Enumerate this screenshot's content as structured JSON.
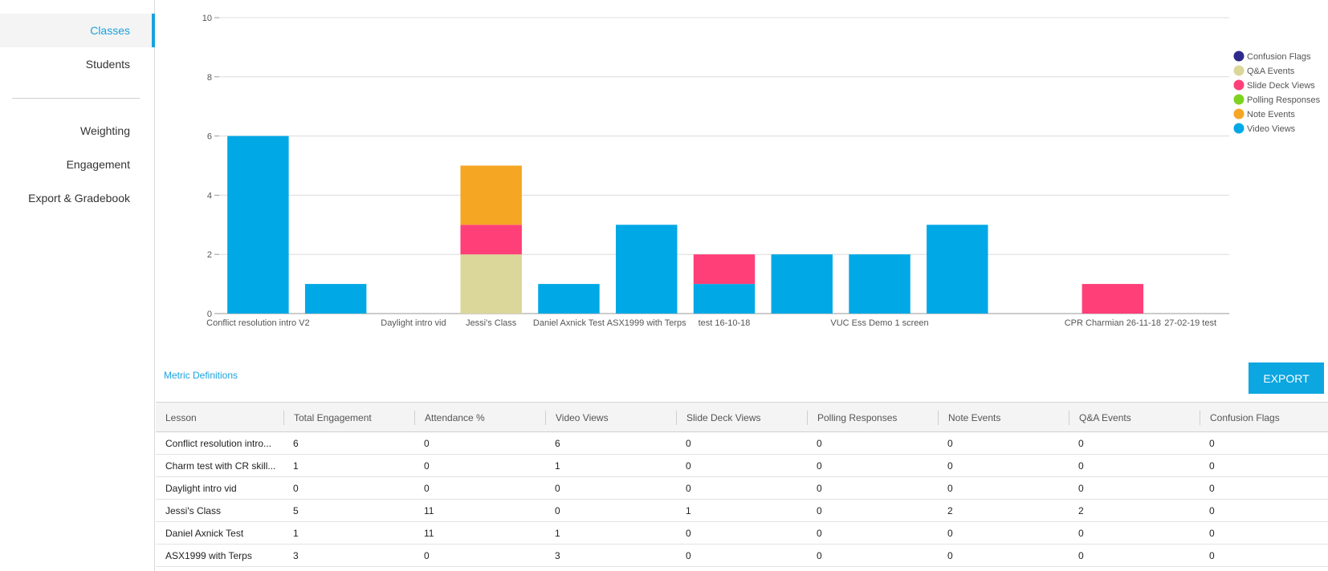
{
  "sidebar": {
    "items": [
      {
        "label": "Classes",
        "active": true
      },
      {
        "label": "Students",
        "active": false
      },
      {
        "label": "Weighting",
        "active": false
      },
      {
        "label": "Engagement",
        "active": false
      },
      {
        "label": "Export & Gradebook",
        "active": false
      }
    ]
  },
  "colors": {
    "accent": "#1aa3dd",
    "confusion_flags": "#2e2a8c",
    "qa_events": "#dbd69a",
    "slide_deck_views": "#ff3f78",
    "polling_responses": "#7ed321",
    "note_events": "#f5a623",
    "video_views": "#00a8e6"
  },
  "chart_data": {
    "type": "bar",
    "stacked": true,
    "categories": [
      "Conflict resolution intro V2",
      "Charm test with CR skill",
      "Daylight intro vid",
      "Jessi's Class",
      "Daniel Axnick Test",
      "ASX1999 with Terps",
      "test 16-10-18",
      "",
      "VUC Ess Demo 1 screen",
      "",
      "",
      "CPR Charmian 26-11-18",
      "27-02-19 test"
    ],
    "x_tick_labels": [
      "Conflict resolution intro V2",
      "",
      "Daylight intro vid",
      "Jessi's Class",
      "Daniel Axnick Test",
      "ASX1999 with Terps",
      "test 16-10-18",
      "",
      "VUC Ess Demo 1 screen",
      "",
      "",
      "CPR Charmian 26-11-18",
      "27-02-19 test"
    ],
    "series": [
      {
        "name": "Video Views",
        "values": [
          6,
          1,
          0,
          0,
          1,
          3,
          1,
          2,
          2,
          3,
          0,
          0,
          0
        ]
      },
      {
        "name": "Slide Deck Views",
        "values": [
          0,
          0,
          0,
          1,
          0,
          0,
          1,
          0,
          0,
          0,
          0,
          1,
          0
        ]
      },
      {
        "name": "Q&A Events",
        "values": [
          0,
          0,
          0,
          2,
          0,
          0,
          0,
          0,
          0,
          0,
          0,
          0,
          0
        ]
      },
      {
        "name": "Note Events",
        "values": [
          0,
          0,
          0,
          2,
          0,
          0,
          0,
          0,
          0,
          0,
          0,
          0,
          0
        ]
      },
      {
        "name": "Polling Responses",
        "values": [
          0,
          0,
          0,
          0,
          0,
          0,
          0,
          0,
          0,
          0,
          0,
          0,
          0
        ]
      },
      {
        "name": "Confusion Flags",
        "values": [
          0,
          0,
          0,
          0,
          0,
          0,
          0,
          0,
          0,
          0,
          0,
          0,
          0
        ]
      }
    ],
    "stack_order": [
      "Q&A Events",
      "Slide Deck Views",
      "Note Events"
    ],
    "ylim": [
      0,
      10
    ],
    "yticks": [
      0,
      2,
      4,
      6,
      8,
      10
    ],
    "grid": true,
    "legend": {
      "placement": "right",
      "entries": [
        "Confusion Flags",
        "Q&A Events",
        "Slide Deck Views",
        "Polling Responses",
        "Note Events",
        "Video Views"
      ]
    }
  },
  "metric_link": "Metric Definitions",
  "export_label": "EXPORT",
  "table": {
    "headers": [
      "Lesson",
      "Total Engagement",
      "Attendance %",
      "Video Views",
      "Slide Deck Views",
      "Polling Responses",
      "Note Events",
      "Q&A Events",
      "Confusion Flags"
    ],
    "rows": [
      [
        "Conflict resolution intro...",
        "6",
        "0",
        "6",
        "0",
        "0",
        "0",
        "0",
        "0"
      ],
      [
        "Charm test with CR skill...",
        "1",
        "0",
        "1",
        "0",
        "0",
        "0",
        "0",
        "0"
      ],
      [
        "Daylight intro vid",
        "0",
        "0",
        "0",
        "0",
        "0",
        "0",
        "0",
        "0"
      ],
      [
        "Jessi's Class",
        "5",
        "11",
        "0",
        "1",
        "0",
        "2",
        "2",
        "0"
      ],
      [
        "Daniel Axnick Test",
        "1",
        "11",
        "1",
        "0",
        "0",
        "0",
        "0",
        "0"
      ],
      [
        "ASX1999 with Terps",
        "3",
        "0",
        "3",
        "0",
        "0",
        "0",
        "0",
        "0"
      ]
    ]
  }
}
